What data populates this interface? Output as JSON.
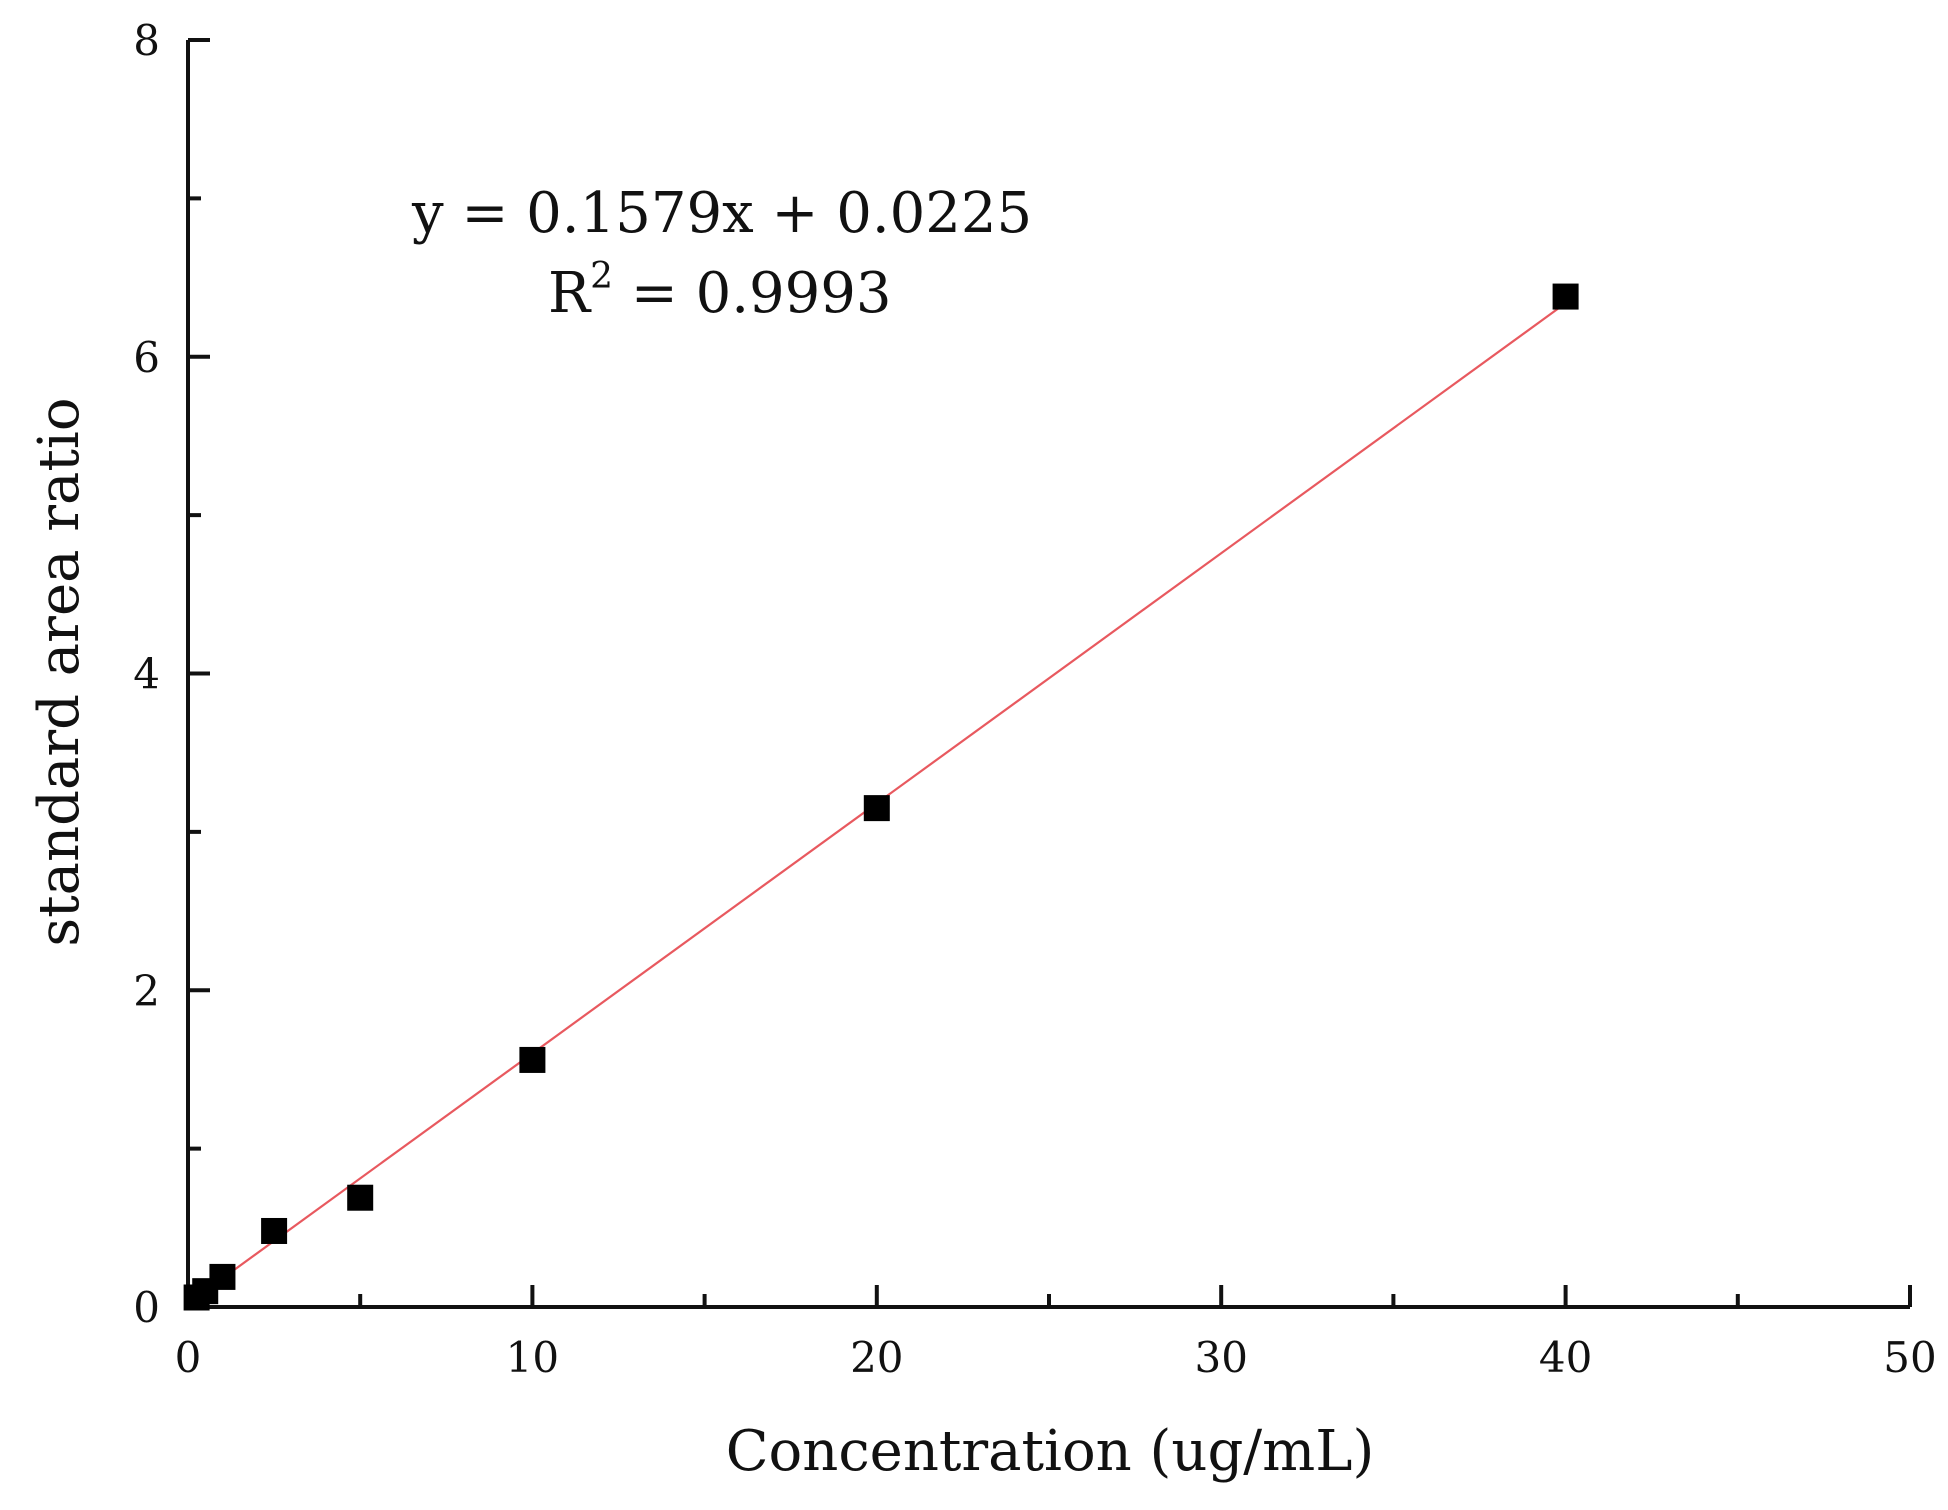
{
  "chart_data": {
    "type": "scatter",
    "title": "",
    "xlabel": "Concentration (ug/mL)",
    "ylabel": "standard area ratio",
    "xlim": [
      0,
      50
    ],
    "ylim": [
      0,
      8
    ],
    "x_ticks": [
      0,
      10,
      20,
      30,
      40,
      50
    ],
    "x_minor_ticks": [
      5,
      15,
      25,
      35,
      45
    ],
    "y_ticks": [
      0,
      2,
      4,
      6,
      8
    ],
    "y_minor_ticks": [
      1,
      3,
      5,
      7
    ],
    "grid": false,
    "series": [
      {
        "x": [
          0.25,
          0.5,
          1,
          2.5,
          5,
          10,
          20,
          40
        ],
        "y": [
          0.06,
          0.1,
          0.19,
          0.48,
          0.69,
          1.56,
          3.15,
          6.38
        ],
        "marker": "square",
        "color": "#000000"
      }
    ],
    "fit": {
      "slope": 0.1579,
      "intercept": 0.0225,
      "x_range": [
        0,
        40
      ],
      "color": "#e8595f"
    },
    "annotation": {
      "equation": "y = 0.1579x + 0.0225",
      "r2_prefix": "R",
      "r2_superscript": "2",
      "r2_suffix": " = 0.9993"
    }
  }
}
